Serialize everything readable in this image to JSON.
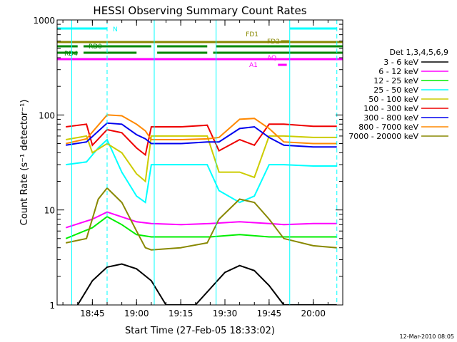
{
  "title": "HESSI Observing Summary Count Rates",
  "footer_date": "12-Mar-2010 08:05",
  "chart_data": {
    "type": "line",
    "title": "HESSI Observing Summary Count Rates",
    "xlabel": "Start Time (27-Feb-05 18:33:02)",
    "ylabel": "Count Rate (s⁻¹ detector⁻¹)",
    "yscale": "log",
    "ylim": [
      1,
      1000
    ],
    "xlim": [
      "18:33:02",
      "20:10:00"
    ],
    "x_ticks": [
      "18:45",
      "19:00",
      "19:15",
      "19:30",
      "19:45",
      "20:00"
    ],
    "y_ticks": [
      "1",
      "10",
      "100",
      "1000"
    ],
    "legend_title": "Det 1,3,4,5,6,9",
    "legend_position": "right",
    "series": [
      {
        "name": "3 - 6 keV",
        "color": "#000000",
        "x": [
          "18:40",
          "18:45",
          "18:50",
          "18:55",
          "19:00",
          "19:05",
          "19:10",
          "19:20",
          "19:30",
          "19:35",
          "19:40",
          "19:45",
          "19:50",
          "20:00",
          "20:08"
        ],
        "values": [
          1,
          1.8,
          2.5,
          2.7,
          2.4,
          1.8,
          1,
          1,
          2.2,
          2.6,
          2.3,
          1.6,
          1,
          1,
          1
        ]
      },
      {
        "name": "6 - 12 keV",
        "color": "#ff00ff",
        "x": [
          "18:36",
          "18:45",
          "18:50",
          "19:00",
          "19:05",
          "19:15",
          "19:25",
          "19:35",
          "19:45",
          "19:50",
          "20:00",
          "20:08"
        ],
        "values": [
          6.5,
          8,
          9.5,
          7.5,
          7.2,
          7,
          7.2,
          7.5,
          7.2,
          7,
          7.2,
          7.2
        ]
      },
      {
        "name": "12 - 25 keV",
        "color": "#00ee00",
        "x": [
          "18:36",
          "18:45",
          "18:50",
          "18:55",
          "19:00",
          "19:05",
          "19:15",
          "19:25",
          "19:35",
          "19:45",
          "19:50",
          "20:00",
          "20:08"
        ],
        "values": [
          5,
          6.5,
          8.5,
          7,
          5.5,
          5.2,
          5.2,
          5.2,
          5.5,
          5.2,
          5.2,
          5.2,
          5.2
        ]
      },
      {
        "name": "25 - 50 keV",
        "color": "#00ffff",
        "x": [
          "18:36",
          "18:43",
          "18:47",
          "18:50",
          "18:55",
          "19:00",
          "19:03",
          "19:05",
          "19:15",
          "19:24",
          "19:28",
          "19:35",
          "19:40",
          "19:45",
          "19:50",
          "20:00",
          "20:08"
        ],
        "values": [
          30,
          32,
          45,
          55,
          25,
          14,
          12,
          30,
          30,
          30,
          16,
          12,
          14,
          30,
          30,
          29,
          29
        ]
      },
      {
        "name": "50 - 100 keV",
        "color": "#cccc00",
        "x": [
          "18:36",
          "18:43",
          "18:45",
          "18:50",
          "18:55",
          "19:00",
          "19:03",
          "19:05",
          "19:15",
          "19:24",
          "19:28",
          "19:35",
          "19:40",
          "19:45",
          "19:50",
          "20:00",
          "20:08"
        ],
        "values": [
          55,
          60,
          40,
          50,
          40,
          24,
          20,
          60,
          60,
          60,
          25,
          25,
          22,
          60,
          60,
          58,
          58
        ]
      },
      {
        "name": "100 - 300 keV",
        "color": "#ee0000",
        "x": [
          "18:36",
          "18:43",
          "18:45",
          "18:50",
          "18:55",
          "19:00",
          "19:03",
          "19:05",
          "19:15",
          "19:24",
          "19:28",
          "19:35",
          "19:40",
          "19:45",
          "19:50",
          "20:00",
          "20:08"
        ],
        "values": [
          75,
          80,
          48,
          70,
          65,
          45,
          38,
          75,
          75,
          78,
          42,
          55,
          48,
          80,
          80,
          76,
          76
        ]
      },
      {
        "name": "300 - 800 keV",
        "color": "#0000ee",
        "x": [
          "18:36",
          "18:43",
          "18:50",
          "18:55",
          "19:00",
          "19:03",
          "19:05",
          "19:15",
          "19:24",
          "19:28",
          "19:35",
          "19:40",
          "19:45",
          "19:50",
          "20:00",
          "20:08"
        ],
        "values": [
          48,
          52,
          82,
          80,
          62,
          56,
          50,
          50,
          52,
          52,
          72,
          75,
          58,
          48,
          46,
          46
        ]
      },
      {
        "name": "800 - 7000 keV",
        "color": "#ff8800",
        "x": [
          "18:36",
          "18:43",
          "18:50",
          "18:55",
          "19:00",
          "19:03",
          "19:05",
          "19:15",
          "19:24",
          "19:28",
          "19:35",
          "19:40",
          "19:45",
          "19:50",
          "20:00",
          "20:08"
        ],
        "values": [
          50,
          56,
          100,
          98,
          80,
          68,
          55,
          55,
          56,
          58,
          90,
          92,
          72,
          52,
          50,
          50
        ]
      },
      {
        "name": "7000 - 20000 keV",
        "color": "#888800",
        "x": [
          "18:36",
          "18:43",
          "18:47",
          "18:50",
          "18:55",
          "19:00",
          "19:03",
          "19:05",
          "19:15",
          "19:24",
          "19:28",
          "19:35",
          "19:40",
          "19:45",
          "19:50",
          "20:00",
          "20:08"
        ],
        "values": [
          4.5,
          5,
          13,
          17,
          12,
          6,
          4,
          3.8,
          4,
          4.5,
          8,
          13,
          12,
          8,
          5,
          4.2,
          4
        ]
      }
    ],
    "flags": [
      {
        "label": "N",
        "color": "#00ffff",
        "segments": [
          [
            "18:33:02",
            "18:50"
          ],
          [
            "19:52",
            "20:08"
          ]
        ]
      },
      {
        "label": "FD1",
        "color": "#888800",
        "segments": [
          [
            "19:49",
            "19:52"
          ]
        ]
      },
      {
        "label": "FD2",
        "color": "#888800",
        "segments": [
          [
            "18:33:02",
            "20:10"
          ]
        ]
      },
      {
        "label": "RD0",
        "color": "#008800",
        "segments": [
          [
            "18:33:02",
            "18:40"
          ],
          [
            "18:42",
            "19:05"
          ],
          [
            "19:07",
            "19:24"
          ],
          [
            "19:27",
            "20:10"
          ]
        ]
      },
      {
        "label": "RD4",
        "color": "#008800",
        "segments": [
          [
            "18:33:02",
            "18:40"
          ],
          [
            "18:42",
            "19:00"
          ],
          [
            "19:07",
            "19:24"
          ],
          [
            "19:26",
            "20:10"
          ]
        ]
      },
      {
        "label": "AQ",
        "color": "#ff00ff",
        "segments": [
          [
            "18:33:02",
            "20:10"
          ]
        ]
      },
      {
        "label": "A1",
        "color": "#ff00ff",
        "segments": [
          [
            "19:48",
            "19:51"
          ]
        ]
      }
    ]
  }
}
